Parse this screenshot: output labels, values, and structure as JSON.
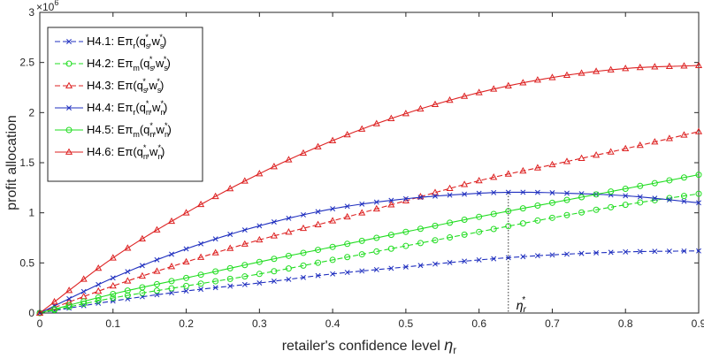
{
  "chart_data": {
    "type": "line",
    "xlabel": "retailer's confidence level",
    "xlabel_symbol": "η",
    "xlabel_sub": "r",
    "ylabel": "profit allocation",
    "y_exponent_base": "×10",
    "y_exponent_power": "6",
    "xlim": [
      0,
      0.9
    ],
    "ylim": [
      0,
      3000000
    ],
    "xticks": [
      "0",
      "0.1",
      "0.2",
      "0.3",
      "0.4",
      "0.5",
      "0.6",
      "0.7",
      "0.8",
      "0.9"
    ],
    "yticks": [
      "0",
      "0.5",
      "1",
      "1.5",
      "2",
      "2.5",
      "3"
    ],
    "grid": false,
    "legend_position": "top-left",
    "annotation": {
      "symbol": "η",
      "sub": "r",
      "sup": "*",
      "x": 0.64,
      "y_top": 1200000
    },
    "series": [
      {
        "id": "h41",
        "legend": {
          "prefix": "H4.1: E",
          "pi": "π",
          "pisub": "r",
          "q": "s",
          "w": "s"
        },
        "color": "#1f2fbf",
        "dash": "dashed",
        "marker": "x",
        "x": [
          0,
          0.1,
          0.2,
          0.3,
          0.4,
          0.5,
          0.6,
          0.7,
          0.8,
          0.9
        ],
        "values": [
          0,
          120000,
          220000,
          300000,
          390000,
          460000,
          530000,
          580000,
          610000,
          620000
        ]
      },
      {
        "id": "h42",
        "legend": {
          "prefix": "H4.2: E",
          "pi": "π",
          "pisub": "m",
          "q": "s",
          "w": "s"
        },
        "color": "#22dd22",
        "dash": "dashed",
        "marker": "circle",
        "x": [
          0,
          0.1,
          0.2,
          0.3,
          0.4,
          0.5,
          0.6,
          0.7,
          0.8,
          0.9
        ],
        "values": [
          0,
          150000,
          270000,
          390000,
          530000,
          670000,
          810000,
          950000,
          1080000,
          1190000
        ]
      },
      {
        "id": "h43",
        "legend": {
          "prefix": "H4.3: E",
          "pi": "π",
          "pisub": "",
          "q": "s",
          "w": "s"
        },
        "color": "#dd2222",
        "dash": "dashed",
        "marker": "triangle",
        "x": [
          0,
          0.1,
          0.2,
          0.3,
          0.4,
          0.5,
          0.6,
          0.7,
          0.8,
          0.9
        ],
        "values": [
          0,
          270000,
          510000,
          730000,
          920000,
          1120000,
          1320000,
          1480000,
          1640000,
          1810000
        ]
      },
      {
        "id": "h44",
        "legend": {
          "prefix": "H4.4: E",
          "pi": "π",
          "pisub": "r",
          "q": "n",
          "w": "n"
        },
        "color": "#1f2fbf",
        "dash": "solid",
        "marker": "x",
        "x": [
          0,
          0.1,
          0.2,
          0.3,
          0.4,
          0.5,
          0.6,
          0.65,
          0.7,
          0.8,
          0.9
        ],
        "values": [
          0,
          350000,
          640000,
          870000,
          1040000,
          1140000,
          1195000,
          1205000,
          1200000,
          1170000,
          1100000
        ]
      },
      {
        "id": "h45",
        "legend": {
          "prefix": "H4.5: E",
          "pi": "π",
          "pisub": "m",
          "q": "n",
          "w": "n"
        },
        "color": "#22dd22",
        "dash": "solid",
        "marker": "circle",
        "x": [
          0,
          0.1,
          0.2,
          0.3,
          0.4,
          0.5,
          0.6,
          0.7,
          0.8,
          0.9
        ],
        "values": [
          0,
          190000,
          350000,
          510000,
          660000,
          810000,
          960000,
          1100000,
          1240000,
          1380000
        ]
      },
      {
        "id": "h46",
        "legend": {
          "prefix": "H4.6: E",
          "pi": "π",
          "pisub": "",
          "q": "n",
          "w": "n"
        },
        "color": "#dd2222",
        "dash": "solid",
        "marker": "triangle",
        "x": [
          0,
          0.1,
          0.2,
          0.3,
          0.4,
          0.5,
          0.6,
          0.7,
          0.8,
          0.9
        ],
        "values": [
          0,
          550000,
          1000000,
          1390000,
          1720000,
          1990000,
          2200000,
          2350000,
          2440000,
          2470000
        ]
      }
    ]
  }
}
